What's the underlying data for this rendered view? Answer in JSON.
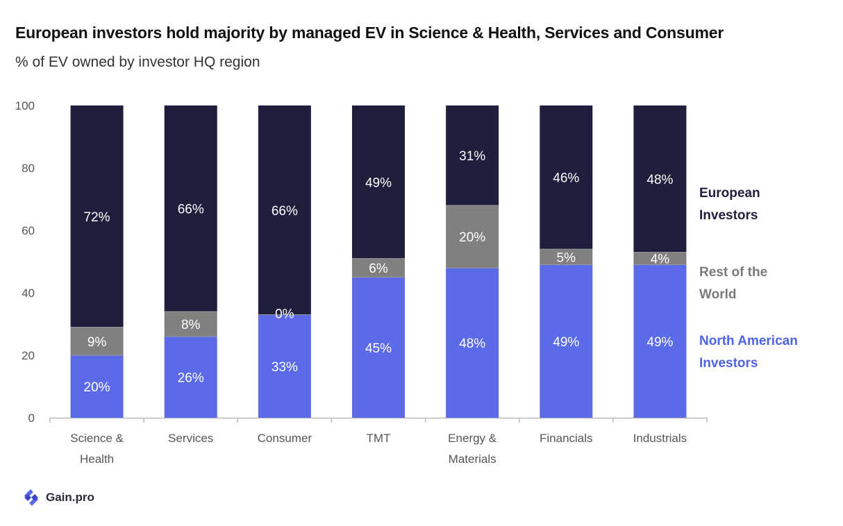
{
  "title": "European investors hold majority by managed EV in Science & Health, Services and Consumer",
  "subtitle": "% of EV owned by investor HQ region",
  "brand": {
    "name": "Gain.pro"
  },
  "colors": {
    "european": "#1f1f3d",
    "rest": "#808080",
    "north_american": "#5b6be8",
    "legend_rest_text": "#7a7a7a",
    "legend_na_text": "#4f63e6",
    "axis": "#bbbbbb",
    "tick_text": "#555555"
  },
  "chart_data": {
    "type": "bar",
    "stacked": true,
    "categories": [
      [
        "Science &",
        "Health"
      ],
      [
        "Services"
      ],
      [
        "Consumer"
      ],
      [
        "TMT"
      ],
      [
        "Energy &",
        "Materials"
      ],
      [
        "Financials"
      ],
      [
        "Industrials"
      ]
    ],
    "ylim": [
      0,
      100
    ],
    "yticks": [
      0,
      20,
      40,
      60,
      80,
      100
    ],
    "series": [
      {
        "name": "North American Investors",
        "legend_lines": [
          "North American",
          "Investors"
        ],
        "values": [
          20,
          26,
          33,
          45,
          48,
          49,
          49
        ],
        "labels": [
          "20%",
          "26%",
          "33%",
          "45%",
          "48%",
          "49%",
          "49%"
        ]
      },
      {
        "name": "Rest of the World",
        "legend_lines": [
          "Rest of the",
          "World"
        ],
        "values": [
          9,
          8,
          0,
          6,
          20,
          5,
          4
        ],
        "labels": [
          "9%",
          "8%",
          "0%",
          "6%",
          "20%",
          "5%",
          "4%"
        ]
      },
      {
        "name": "European Investors",
        "legend_lines": [
          "European",
          "Investors"
        ],
        "values": [
          72,
          66,
          66,
          49,
          31,
          46,
          48
        ],
        "labels": [
          "72%",
          "66%",
          "66%",
          "49%",
          "31%",
          "46%",
          "48%"
        ]
      }
    ],
    "legend_position": "right",
    "grid": false
  }
}
